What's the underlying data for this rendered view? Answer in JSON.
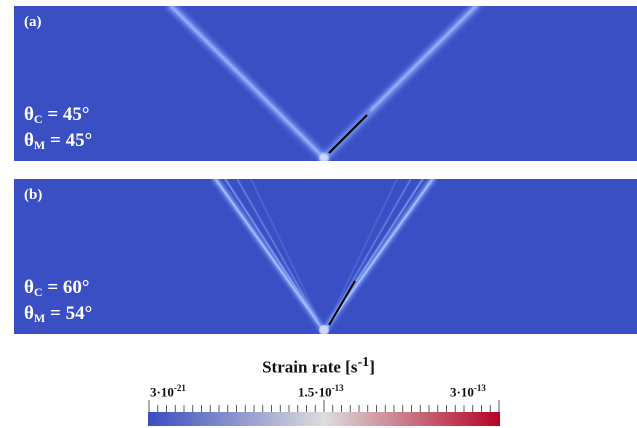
{
  "panels": [
    {
      "label": "(a)",
      "theta_c_symbol": "θ",
      "theta_c_sub": "C",
      "theta_c_value": " = 45°",
      "theta_m_symbol": "θ",
      "theta_m_sub": "M",
      "theta_m_value": " = 45°"
    },
    {
      "label": "(b)",
      "theta_c_symbol": "θ",
      "theta_c_sub": "C",
      "theta_c_value": " = 60°",
      "theta_m_symbol": "θ",
      "theta_m_sub": "M",
      "theta_m_value": " = 54°"
    }
  ],
  "colorbar": {
    "title": "Strain rate [s",
    "title_sup": "-1",
    "title_end": "]",
    "min_base": "3·10",
    "min_exp": "-21",
    "mid_base": "1.5·10",
    "mid_exp": "-13",
    "max_base": "3·10",
    "max_exp": "-13",
    "colors": [
      "#3b4cc0",
      "#dddddd",
      "#b40426"
    ]
  }
}
